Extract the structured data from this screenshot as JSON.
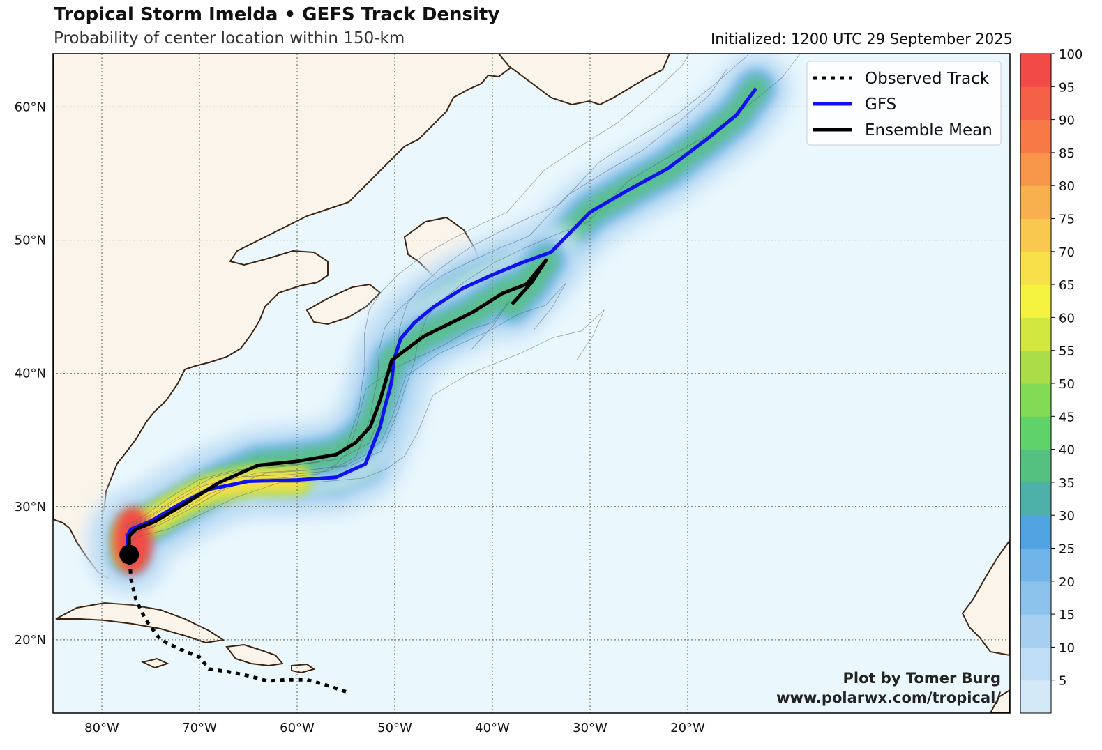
{
  "header": {
    "title": "Tropical Storm Imelda • GEFS Track Density",
    "subtitle": "Probability of center location within 150-km",
    "initialized": "Initialized: 1200 UTC 29 September 2025"
  },
  "map": {
    "lon_range": [
      -85,
      13
    ],
    "lat_range": [
      14.5,
      64
    ],
    "lat_ticks": [
      {
        "value": 20,
        "label": "20°N"
      },
      {
        "value": 30,
        "label": "30°N"
      },
      {
        "value": 40,
        "label": "40°N"
      },
      {
        "value": 50,
        "label": "50°N"
      },
      {
        "value": 60,
        "label": "60°N"
      }
    ],
    "lon_ticks": [
      {
        "value": -80,
        "label": "80°W"
      },
      {
        "value": -70,
        "label": "70°W"
      },
      {
        "value": -60,
        "label": "60°W"
      },
      {
        "value": -50,
        "label": "50°W"
      },
      {
        "value": -40,
        "label": "40°W"
      },
      {
        "value": -30,
        "label": "30°W"
      },
      {
        "value": -20,
        "label": "20°W"
      }
    ],
    "ocean_color": "#eaf8fd",
    "land_color": "#fbf4ea",
    "coast_color": "#3d2410"
  },
  "legend": {
    "position": "top-right",
    "items": [
      {
        "label": "Observed Track",
        "style": "dotted",
        "color": "#000000"
      },
      {
        "label": "GFS",
        "style": "solid",
        "color": "#1010f0"
      },
      {
        "label": "Ensemble Mean",
        "style": "solid",
        "color": "#000000"
      }
    ]
  },
  "colorbar": {
    "ticks": [
      "5",
      "10",
      "15",
      "20",
      "25",
      "30",
      "35",
      "40",
      "45",
      "50",
      "55",
      "60",
      "65",
      "70",
      "75",
      "80",
      "85",
      "90",
      "95",
      "100"
    ],
    "colors": [
      "#d4e9f8",
      "#bfddf4",
      "#a7d0f0",
      "#8cc3ec",
      "#6fb3e7",
      "#52a3e2",
      "#4fb0a9",
      "#55c080",
      "#5fd36a",
      "#83da55",
      "#abdd48",
      "#d2e840",
      "#f5f240",
      "#f7e04a",
      "#f8c94e",
      "#f7b04d",
      "#f79548",
      "#f77a46",
      "#f56147",
      "#f24b47"
    ]
  },
  "tracks": {
    "observed": [
      [
        -55,
        16.1
      ],
      [
        -57,
        16.6
      ],
      [
        -59,
        17
      ],
      [
        -61,
        17
      ],
      [
        -63,
        16.9
      ],
      [
        -65,
        17.3
      ],
      [
        -67,
        17.6
      ],
      [
        -69,
        17.8
      ],
      [
        -70,
        18.7
      ],
      [
        -72,
        19.3
      ],
      [
        -74,
        20
      ],
      [
        -75.5,
        21.5
      ],
      [
        -76.5,
        23
      ],
      [
        -77,
        24.5
      ],
      [
        -77.2,
        26.4
      ]
    ],
    "gfs": [
      [
        -77.3,
        26.5
      ],
      [
        -77.4,
        27.8
      ],
      [
        -77,
        28.3
      ],
      [
        -75,
        28.9
      ],
      [
        -72,
        30.2
      ],
      [
        -69,
        31.3
      ],
      [
        -65,
        31.9
      ],
      [
        -60,
        32
      ],
      [
        -56,
        32.2
      ],
      [
        -53,
        33.2
      ],
      [
        -51.5,
        36
      ],
      [
        -51,
        37.5
      ],
      [
        -50.5,
        38.8
      ],
      [
        -50.3,
        39.5
      ],
      [
        -50.1,
        41
      ],
      [
        -49.4,
        42.6
      ],
      [
        -48,
        43.8
      ],
      [
        -46,
        45
      ],
      [
        -43,
        46.4
      ],
      [
        -40,
        47.4
      ],
      [
        -37,
        48.3
      ],
      [
        -34,
        49.1
      ],
      [
        -30,
        52.1
      ],
      [
        -26,
        53.8
      ],
      [
        -22,
        55.4
      ],
      [
        -18,
        57.6
      ],
      [
        -15,
        59.4
      ],
      [
        -13,
        61.4
      ]
    ],
    "mean": [
      [
        -77.2,
        26.4
      ],
      [
        -77.2,
        27.8
      ],
      [
        -76.5,
        28.3
      ],
      [
        -74.5,
        28.9
      ],
      [
        -71.5,
        30.2
      ],
      [
        -68,
        31.8
      ],
      [
        -64,
        33.1
      ],
      [
        -60,
        33.4
      ],
      [
        -56,
        33.9
      ],
      [
        -54,
        34.8
      ],
      [
        -52.5,
        36
      ],
      [
        -51.5,
        38
      ],
      [
        -50.3,
        41
      ],
      [
        -47,
        42.8
      ],
      [
        -42,
        44.6
      ],
      [
        -39,
        46
      ],
      [
        -36.5,
        46.7
      ],
      [
        -34.5,
        48.5
      ],
      [
        -36,
        46.8
      ],
      [
        -38,
        45.2
      ]
    ],
    "current_position": [
      -77.2,
      26.4
    ]
  },
  "credit": {
    "line1": "Plot by Tomer Burg",
    "line2": "www.polarwx.com/tropical/"
  }
}
